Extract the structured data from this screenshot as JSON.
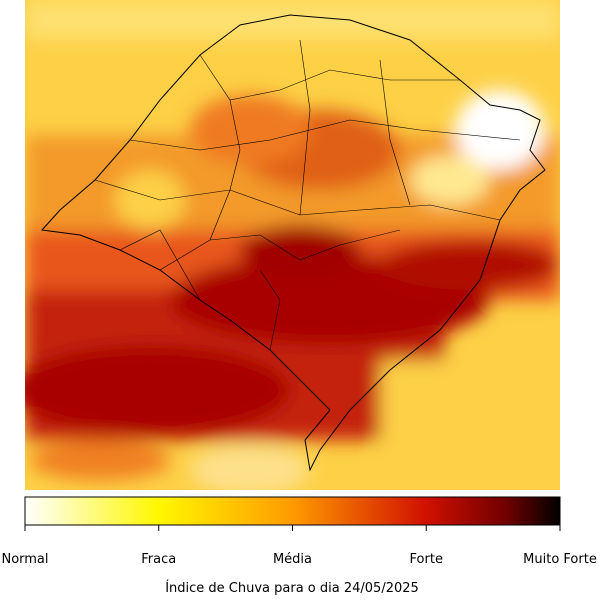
{
  "legend": {
    "labels": [
      "Normal",
      "Fraca",
      "Média",
      "Forte",
      "Muito Forte"
    ]
  },
  "caption": "Índice de Chuva para o dia 24/05/2025"
}
